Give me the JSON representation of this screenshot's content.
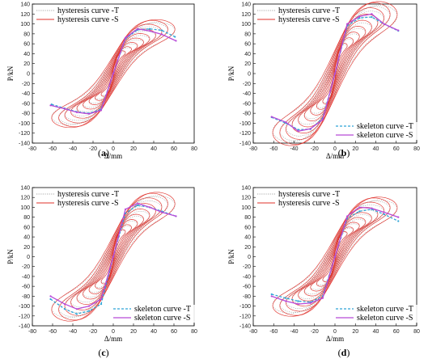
{
  "figure": {
    "panels_caption_labels": [
      "(a)",
      "(b)",
      "(c)",
      "(d)"
    ]
  },
  "chart_data": [
    {
      "panel": "(a)",
      "type": "line",
      "xlabel": "Δ/mm",
      "ylabel": "P/kN",
      "xlim": [
        -80,
        80
      ],
      "ylim": [
        -140,
        140
      ],
      "xticks": [
        -80,
        -60,
        -40,
        -20,
        0,
        20,
        40,
        60,
        80
      ],
      "yticks": [
        -140,
        -120,
        -100,
        -80,
        -60,
        -40,
        -20,
        0,
        20,
        40,
        60,
        80,
        100,
        120,
        140
      ],
      "legend": [
        {
          "label": "hysteresis curve -T",
          "position": "top-left"
        },
        {
          "label": "hysteresis curve -S",
          "position": "top-left"
        }
      ],
      "colors": {
        "hys_T": "#8c8c8c",
        "hys_S": "#e0302a",
        "skel_T": "#2fa5d6",
        "skel_S": "#b84ad8"
      },
      "skeleton_T": {
        "x": [
          -61,
          -48,
          -36,
          -24,
          -12,
          0,
          12,
          24,
          36,
          48,
          61
        ],
        "y": [
          -62,
          -70,
          -77,
          -80,
          -72,
          0,
          70,
          88,
          90,
          87,
          74
        ]
      },
      "skeleton_S": {
        "x": [
          -62,
          -48,
          -36,
          -24,
          -12,
          0,
          12,
          24,
          36,
          48,
          62
        ],
        "y": [
          -64,
          -71,
          -78,
          -81,
          -74,
          0,
          72,
          90,
          86,
          79,
          66
        ]
      },
      "envelope_T": {
        "x": [
          12,
          24,
          36,
          48,
          60
        ],
        "y": [
          70,
          88,
          90,
          87,
          74
        ]
      },
      "envelope_S": {
        "x": [
          12,
          24,
          36,
          48,
          60
        ],
        "y": [
          72,
          90,
          86,
          79,
          66
        ]
      }
    },
    {
      "panel": "(b)",
      "type": "line",
      "xlabel": "Δ/mm",
      "ylabel": "P/kN",
      "xlim": [
        -80,
        80
      ],
      "ylim": [
        -140,
        140
      ],
      "xticks": [
        -80,
        -60,
        -40,
        -20,
        0,
        20,
        40,
        60,
        80
      ],
      "yticks": [
        -140,
        -120,
        -100,
        -80,
        -60,
        -40,
        -20,
        0,
        20,
        40,
        60,
        80,
        100,
        120,
        140
      ],
      "legend": [
        {
          "label": "hysteresis curve -T",
          "position": "top-left"
        },
        {
          "label": "hysteresis curve -S",
          "position": "top-left"
        },
        {
          "label": "skeleton curve -T",
          "position": "bottom-right"
        },
        {
          "label": "skeleton curve -S",
          "position": "bottom-right"
        }
      ],
      "colors": {
        "hys_T": "#8c8c8c",
        "hys_S": "#e0302a",
        "skel_T": "#2fa5d6",
        "skel_S": "#b84ad8"
      },
      "skeleton_T": {
        "x": [
          -62,
          -48,
          -36,
          -24,
          -12,
          0,
          12,
          24,
          36,
          48,
          62
        ],
        "y": [
          -88,
          -100,
          -113,
          -112,
          -90,
          0,
          96,
          112,
          114,
          100,
          86
        ]
      },
      "skeleton_S": {
        "x": [
          -62,
          -48,
          -36,
          -24,
          -12,
          0,
          12,
          24,
          36,
          48,
          62
        ],
        "y": [
          -87,
          -98,
          -116,
          -111,
          -93,
          0,
          100,
          115,
          120,
          100,
          87
        ]
      }
    },
    {
      "panel": "(c)",
      "type": "line",
      "xlabel": "Δ/mm",
      "ylabel": "P/kN",
      "xlim": [
        -80,
        80
      ],
      "ylim": [
        -140,
        140
      ],
      "xticks": [
        -80,
        -60,
        -40,
        -20,
        0,
        20,
        40,
        60,
        80
      ],
      "yticks": [
        -140,
        -120,
        -100,
        -80,
        -60,
        -40,
        -20,
        0,
        20,
        40,
        60,
        80,
        100,
        120,
        140
      ],
      "legend": [
        {
          "label": "hysteresis curve -T",
          "position": "top-left"
        },
        {
          "label": "hysteresis curve -S",
          "position": "top-left"
        },
        {
          "label": "skeleton curve -T",
          "position": "bottom-right"
        },
        {
          "label": "skeleton curve -S",
          "position": "bottom-right"
        }
      ],
      "colors": {
        "hys_T": "#8c8c8c",
        "hys_S": "#e0302a",
        "skel_T": "#2fa5d6",
        "skel_S": "#b84ad8"
      },
      "skeleton_T": {
        "x": [
          -62,
          -48,
          -36,
          -24,
          -12,
          0,
          12,
          24,
          36,
          48,
          62
        ],
        "y": [
          -86,
          -106,
          -116,
          -110,
          -96,
          0,
          88,
          104,
          100,
          92,
          82
        ]
      },
      "skeleton_S": {
        "x": [
          -62,
          -48,
          -36,
          -24,
          -12,
          0,
          12,
          24,
          36,
          48,
          62
        ],
        "y": [
          -80,
          -96,
          -106,
          -100,
          -86,
          0,
          96,
          108,
          100,
          90,
          82
        ]
      }
    },
    {
      "panel": "(d)",
      "type": "line",
      "xlabel": "Δ/mm",
      "ylabel": "P/kN",
      "xlim": [
        -80,
        80
      ],
      "ylim": [
        -140,
        140
      ],
      "xticks": [
        -80,
        -60,
        -40,
        -20,
        0,
        20,
        40,
        60,
        80
      ],
      "yticks": [
        -140,
        -120,
        -100,
        -80,
        -60,
        -40,
        -20,
        0,
        20,
        40,
        60,
        80,
        100,
        120,
        140
      ],
      "legend": [
        {
          "label": "hysteresis curve -T",
          "position": "top-left"
        },
        {
          "label": "hysteresis curve -S",
          "position": "top-left"
        },
        {
          "label": "skeleton curve -T",
          "position": "bottom-right"
        },
        {
          "label": "skeleton curve -S",
          "position": "bottom-right"
        }
      ],
      "colors": {
        "hys_T": "#8c8c8c",
        "hys_S": "#e0302a",
        "skel_T": "#2fa5d6",
        "skel_S": "#b84ad8"
      },
      "skeleton_T": {
        "x": [
          -62,
          -48,
          -36,
          -24,
          -12,
          0,
          12,
          24,
          36,
          48,
          62
        ],
        "y": [
          -76,
          -84,
          -90,
          -92,
          -80,
          0,
          78,
          92,
          96,
          86,
          72
        ]
      },
      "skeleton_S": {
        "x": [
          -62,
          -48,
          -36,
          -24,
          -12,
          0,
          12,
          24,
          36,
          48,
          62
        ],
        "y": [
          -80,
          -90,
          -96,
          -94,
          -84,
          0,
          82,
          100,
          98,
          90,
          80
        ]
      }
    }
  ]
}
